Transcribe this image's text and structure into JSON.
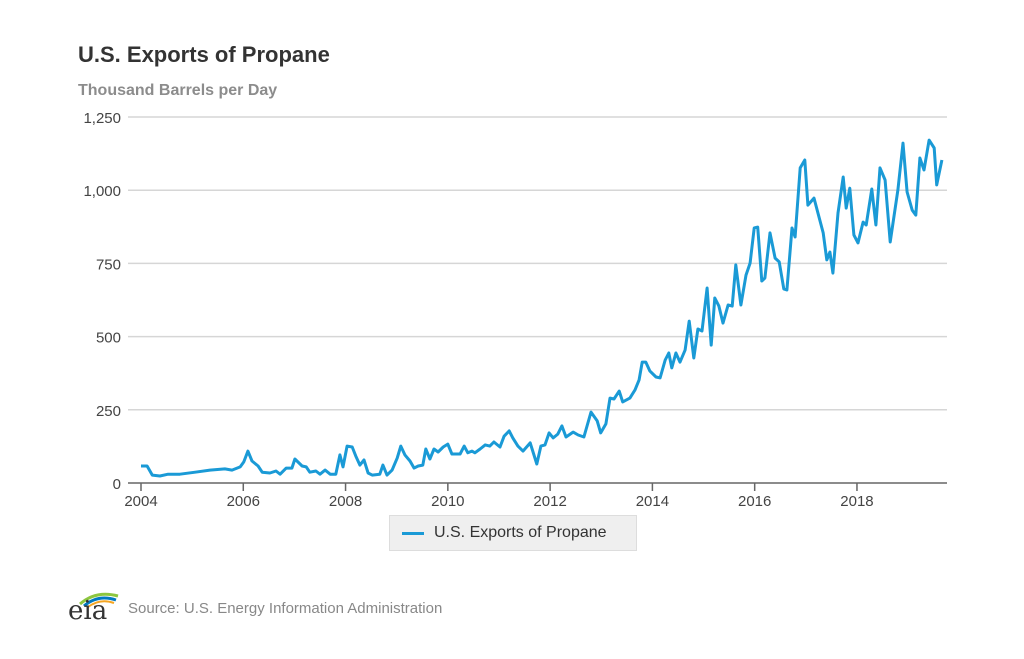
{
  "chart_data": {
    "type": "line",
    "title": "U.S. Exports of Propane",
    "ylabel": "Thousand Barrels per Day",
    "xlabel": "",
    "xlim": [
      2004,
      2019.76
    ],
    "ylim": [
      0,
      1250
    ],
    "x_ticks": [
      2004,
      2006,
      2008,
      2010,
      2012,
      2014,
      2016,
      2018
    ],
    "y_ticks": [
      0,
      250,
      500,
      750,
      1000,
      1250
    ],
    "y_tick_labels": [
      "0",
      "250",
      "500",
      "750",
      "1,000",
      "1,250"
    ],
    "grid": true,
    "legend": "bottom-center",
    "series": [
      {
        "name": "U.S. Exports of Propane",
        "color": "#1a9ad6",
        "points": [
          [
            2004.0,
            58
          ],
          [
            2004.12,
            58
          ],
          [
            2004.22,
            27
          ],
          [
            2004.37,
            24
          ],
          [
            2004.53,
            30
          ],
          [
            2004.76,
            30
          ],
          [
            2005.06,
            37
          ],
          [
            2005.35,
            44
          ],
          [
            2005.64,
            48
          ],
          [
            2005.78,
            44
          ],
          [
            2005.94,
            55
          ],
          [
            2006.01,
            72
          ],
          [
            2006.09,
            109
          ],
          [
            2006.17,
            75
          ],
          [
            2006.29,
            58
          ],
          [
            2006.37,
            37
          ],
          [
            2006.52,
            34
          ],
          [
            2006.64,
            41
          ],
          [
            2006.72,
            30
          ],
          [
            2006.84,
            51
          ],
          [
            2006.95,
            51
          ],
          [
            2007.01,
            82
          ],
          [
            2007.15,
            58
          ],
          [
            2007.23,
            55
          ],
          [
            2007.3,
            37
          ],
          [
            2007.42,
            41
          ],
          [
            2007.5,
            30
          ],
          [
            2007.6,
            44
          ],
          [
            2007.7,
            30
          ],
          [
            2007.81,
            30
          ],
          [
            2007.89,
            96
          ],
          [
            2007.95,
            55
          ],
          [
            2008.03,
            126
          ],
          [
            2008.13,
            123
          ],
          [
            2008.2,
            92
          ],
          [
            2008.28,
            61
          ],
          [
            2008.36,
            79
          ],
          [
            2008.44,
            34
          ],
          [
            2008.52,
            27
          ],
          [
            2008.67,
            30
          ],
          [
            2008.73,
            61
          ],
          [
            2008.81,
            27
          ],
          [
            2008.91,
            44
          ],
          [
            2009.01,
            85
          ],
          [
            2009.08,
            126
          ],
          [
            2009.16,
            96
          ],
          [
            2009.26,
            75
          ],
          [
            2009.34,
            51
          ],
          [
            2009.42,
            58
          ],
          [
            2009.51,
            61
          ],
          [
            2009.57,
            116
          ],
          [
            2009.65,
            82
          ],
          [
            2009.73,
            116
          ],
          [
            2009.81,
            106
          ],
          [
            2009.91,
            123
          ],
          [
            2010.0,
            133
          ],
          [
            2010.08,
            99
          ],
          [
            2010.24,
            99
          ],
          [
            2010.32,
            126
          ],
          [
            2010.39,
            103
          ],
          [
            2010.47,
            109
          ],
          [
            2010.53,
            103
          ],
          [
            2010.63,
            116
          ],
          [
            2010.73,
            130
          ],
          [
            2010.82,
            126
          ],
          [
            2010.9,
            140
          ],
          [
            2011.02,
            123
          ],
          [
            2011.1,
            160
          ],
          [
            2011.2,
            178
          ],
          [
            2011.27,
            154
          ],
          [
            2011.37,
            126
          ],
          [
            2011.47,
            109
          ],
          [
            2011.61,
            137
          ],
          [
            2011.74,
            65
          ],
          [
            2011.82,
            126
          ],
          [
            2011.9,
            130
          ],
          [
            2011.98,
            171
          ],
          [
            2012.06,
            154
          ],
          [
            2012.15,
            167
          ],
          [
            2012.23,
            195
          ],
          [
            2012.31,
            157
          ],
          [
            2012.45,
            174
          ],
          [
            2012.55,
            164
          ],
          [
            2012.66,
            157
          ],
          [
            2012.8,
            242
          ],
          [
            2012.92,
            212
          ],
          [
            2012.99,
            171
          ],
          [
            2013.09,
            202
          ],
          [
            2013.17,
            290
          ],
          [
            2013.25,
            287
          ],
          [
            2013.35,
            314
          ],
          [
            2013.42,
            277
          ],
          [
            2013.56,
            290
          ],
          [
            2013.66,
            318
          ],
          [
            2013.74,
            352
          ],
          [
            2013.8,
            413
          ],
          [
            2013.87,
            413
          ],
          [
            2013.95,
            383
          ],
          [
            2014.07,
            362
          ],
          [
            2014.15,
            359
          ],
          [
            2014.25,
            420
          ],
          [
            2014.32,
            444
          ],
          [
            2014.38,
            393
          ],
          [
            2014.46,
            444
          ],
          [
            2014.54,
            413
          ],
          [
            2014.64,
            454
          ],
          [
            2014.72,
            553
          ],
          [
            2014.81,
            427
          ],
          [
            2014.89,
            526
          ],
          [
            2014.97,
            519
          ],
          [
            2015.07,
            666
          ],
          [
            2015.15,
            471
          ],
          [
            2015.22,
            632
          ],
          [
            2015.3,
            604
          ],
          [
            2015.38,
            546
          ],
          [
            2015.48,
            608
          ],
          [
            2015.56,
            604
          ],
          [
            2015.63,
            745
          ],
          [
            2015.73,
            608
          ],
          [
            2015.83,
            710
          ],
          [
            2015.91,
            751
          ],
          [
            2015.99,
            871
          ],
          [
            2016.06,
            874
          ],
          [
            2016.14,
            690
          ],
          [
            2016.2,
            700
          ],
          [
            2016.3,
            854
          ],
          [
            2016.4,
            768
          ],
          [
            2016.48,
            755
          ],
          [
            2016.57,
            663
          ],
          [
            2016.63,
            659
          ],
          [
            2016.73,
            871
          ],
          [
            2016.79,
            840
          ],
          [
            2016.89,
            1076
          ],
          [
            2016.98,
            1103
          ],
          [
            2017.04,
            949
          ],
          [
            2017.16,
            973
          ],
          [
            2017.34,
            854
          ],
          [
            2017.41,
            762
          ],
          [
            2017.47,
            789
          ],
          [
            2017.53,
            717
          ],
          [
            2017.63,
            922
          ],
          [
            2017.73,
            1045
          ],
          [
            2017.79,
            939
          ],
          [
            2017.86,
            1007
          ],
          [
            2017.94,
            847
          ],
          [
            2018.02,
            820
          ],
          [
            2018.12,
            891
          ],
          [
            2018.18,
            881
          ],
          [
            2018.29,
            1004
          ],
          [
            2018.37,
            881
          ],
          [
            2018.45,
            1076
          ],
          [
            2018.55,
            1035
          ],
          [
            2018.65,
            823
          ],
          [
            2018.8,
            1001
          ],
          [
            2018.9,
            1161
          ],
          [
            2018.98,
            994
          ],
          [
            2019.08,
            932
          ],
          [
            2019.15,
            915
          ],
          [
            2019.23,
            1110
          ],
          [
            2019.31,
            1069
          ],
          [
            2019.41,
            1171
          ],
          [
            2019.51,
            1144
          ],
          [
            2019.56,
            1018
          ],
          [
            2019.66,
            1103
          ]
        ]
      }
    ]
  },
  "footer": {
    "logo_text": "eia",
    "source": "Source: U.S. Energy Information Administration"
  }
}
